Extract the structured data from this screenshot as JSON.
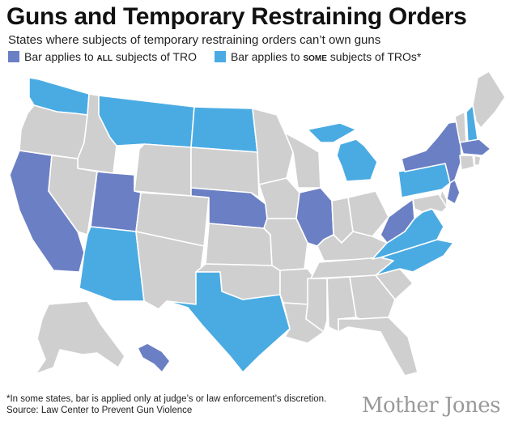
{
  "header": {
    "title": "Guns and Temporary Restraining Orders",
    "subtitle": "States where subjects of temporary restraining orders can’t own guns"
  },
  "legend": {
    "all": {
      "prefix": "Bar applies to ",
      "emph": "all",
      "suffix": " subjects of TRO",
      "color": "#6b7fc4"
    },
    "some": {
      "prefix": "Bar applies to ",
      "emph": "some",
      "suffix": " subjects of TROs*",
      "color": "#4aabe3"
    }
  },
  "colors": {
    "none": "#cfcfcf",
    "all": "#6b7fc4",
    "some": "#4aabe3",
    "border": "#ffffff"
  },
  "states_all": [
    "California",
    "Utah",
    "Nebraska",
    "Illinois",
    "West Virginia",
    "New York",
    "New Jersey",
    "Massachusetts",
    "Hawaii"
  ],
  "states_some": [
    "Washington",
    "Montana",
    "North Dakota",
    "Arizona",
    "Texas",
    "Michigan",
    "Pennsylvania",
    "Virginia",
    "North Carolina",
    "New Hampshire"
  ],
  "footer": {
    "note": "*In some states, bar is applied only at judge’s or law enforcement’s discretion.",
    "source": "Source: Law Center to Prevent Gun Violence",
    "logo": "Mother Jones"
  }
}
